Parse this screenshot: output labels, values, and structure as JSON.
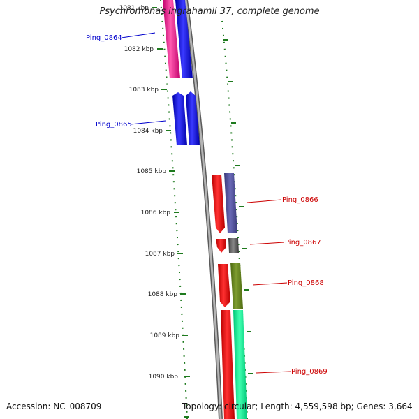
{
  "title": "Psychromonas ingrahamii 37, complete genome",
  "accession": "Accession: NC_008709",
  "topology": "Topology: circular; Length: 4,559,598 bp; Genes: 3,664",
  "colors": {
    "backbone": "#8a8a8a",
    "tick": "#1e7a1e",
    "left_label": "#0000cc",
    "right_label": "#cc0000"
  },
  "ticks": [
    {
      "label": "1081 kbp"
    },
    {
      "label": "1082 kbp"
    },
    {
      "label": "1083 kbp"
    },
    {
      "label": "1084 kbp"
    },
    {
      "label": "1085 kbp"
    },
    {
      "label": "1086 kbp"
    },
    {
      "label": "1087 kbp"
    },
    {
      "label": "1088 kbp"
    },
    {
      "label": "1089 kbp"
    },
    {
      "label": "1090 kbp"
    }
  ],
  "genes_left": [
    {
      "name": "Ping_0864"
    },
    {
      "name": "Ping_0865"
    }
  ],
  "genes_right": [
    {
      "name": "Ping_0866"
    },
    {
      "name": "Ping_0867"
    },
    {
      "name": "Ping_0868"
    },
    {
      "name": "Ping_0869"
    }
  ]
}
